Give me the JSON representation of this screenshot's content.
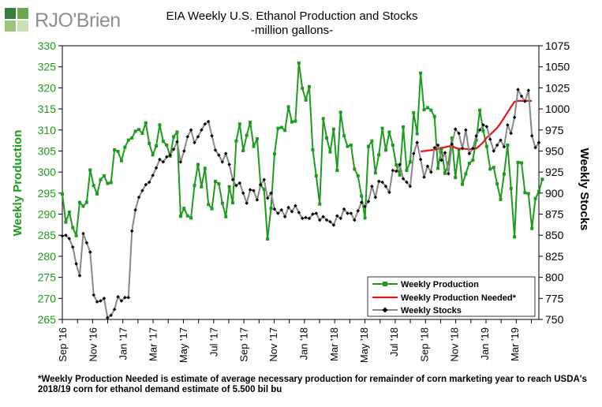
{
  "logo": {
    "brand_text": "RJO'Brien",
    "colors": [
      "#3a7d3a",
      "#6aa84f",
      "#9bc47a",
      "#c9dfb6"
    ]
  },
  "footnote": "*Weekly Production Needed is estimate of average necessary production for remainder of corn marketing year to reach USDA's 2018/19 corn for ethanol demand estimate of 5.500 bil bu",
  "colors": {
    "production": "#1e9b1e",
    "needed": "#e8131b",
    "stocks_line": "#888888",
    "stocks_marker": "#000000"
  },
  "chart_data": {
    "type": "line",
    "title": "EIA Weekly U.S. Ethanol Production and Stocks",
    "subtitle": "-million gallons-",
    "ylabel": "Weekly Production",
    "y2label": "Weekly Stocks",
    "ylim": [
      265,
      330
    ],
    "y2lim": [
      750,
      1075
    ],
    "yticks": [
      265,
      270,
      275,
      280,
      285,
      290,
      295,
      300,
      305,
      310,
      315,
      320,
      325,
      330
    ],
    "y2ticks": [
      750,
      775,
      800,
      825,
      850,
      875,
      900,
      925,
      950,
      975,
      1000,
      1025,
      1050,
      1075
    ],
    "x_range_weeks": [
      0,
      137
    ],
    "xtick_weeks": [
      0,
      8.7,
      17.4,
      26,
      34.7,
      43.4,
      52,
      60.6,
      69.3,
      78,
      86.6,
      95.3,
      104,
      112.6,
      121.3,
      130
    ],
    "xtick_labels": [
      "Sep '16",
      "Nov '16",
      "Jan '17",
      "Mar '17",
      "May '17",
      "Jul '17",
      "Sep '17",
      "Nov '17",
      "Jan '18",
      "Mar '18",
      "May '18",
      "Jul '18",
      "Sep '18",
      "Nov '18",
      "Jan '19",
      "Mar '19"
    ],
    "legend": {
      "position": "bottom-right",
      "entries": [
        "Weekly Production",
        "Weekly Production Needed*",
        "Weekly Stocks"
      ]
    },
    "grid": false,
    "series": [
      {
        "name": "Weekly Production",
        "axis": "left",
        "start_week": 0,
        "values": [
          294.8,
          288.1,
          290.5,
          286.8,
          284.9,
          292.8,
          291.9,
          292.8,
          300.5,
          296.8,
          294.8,
          298.2,
          299.1,
          297.3,
          297.5,
          305.3,
          304.9,
          302.7,
          305.9,
          307.6,
          308.1,
          309.7,
          310.1,
          309.2,
          311.7,
          306.8,
          304.1,
          306.2,
          311.2,
          307.3,
          306.4,
          303.8,
          308.4,
          309.5,
          289.5,
          291.4,
          289.6,
          289.1,
          296.8,
          301.8,
          296.5,
          300.9,
          292.3,
          291.3,
          297.8,
          297.2,
          292.6,
          289.4,
          296.5,
          292.7,
          307.4,
          311.4,
          305.1,
          308.7,
          311.8,
          306.1,
          307.9,
          296.9,
          295.9,
          284.1,
          291.4,
          304.3,
          310.4,
          310.6,
          309.9,
          315.5,
          311.9,
          312.1,
          325.9,
          319.9,
          317.1,
          320.3,
          305.3,
          299.1,
          292.4,
          312.7,
          308.1,
          304.8,
          310.2,
          300.4,
          314.2,
          308.6,
          306.1,
          306.4,
          300.7,
          299.1,
          294.3,
          289.1,
          306.1,
          307.4,
          299.8,
          304.1,
          310.4,
          305.2,
          309.5,
          306.4,
          301.7,
          299.3,
          310.7,
          300.4,
          302.4,
          314.1,
          309.1,
          323.5,
          314.8,
          315.3,
          314.7,
          313.2,
          300.9,
          305.6,
          299.7,
          302.1,
          308.1,
          298.7,
          305.4,
          297.1,
          299.6,
          302.1,
          302.8,
          307.6,
          314.7,
          309.8,
          306.1,
          300.7,
          301.1,
          297.2,
          293.5,
          299.5,
          306.4,
          296.1,
          284.6,
          302.3,
          302.2,
          295.1,
          294.9,
          286.6,
          293.7,
          295.4,
          298.3
        ]
      },
      {
        "name": "Weekly Production Needed*",
        "axis": "left",
        "start_week": 103,
        "values": [
          304.9,
          305,
          305.1,
          305.2,
          305.3,
          305.5,
          305.7,
          305.9,
          306.1,
          306.2,
          305.8,
          305.5,
          305.6,
          305.5,
          305.4,
          305.5,
          305.6,
          306.3,
          307.1,
          308.2,
          308.9,
          309.7,
          310.5,
          311.6,
          312.9,
          314.2,
          315.5,
          316.7,
          316.9,
          316.9,
          316.9,
          316.9,
          316.9
        ]
      },
      {
        "name": "Weekly Stocks",
        "axis": "right",
        "start_week": 0,
        "values": [
          849,
          850,
          846,
          836,
          816,
          802,
          852,
          841,
          830,
          779,
          771,
          772,
          775,
          752,
          755,
          762,
          777,
          772,
          776,
          776,
          855,
          880,
          895,
          903,
          910,
          913,
          921,
          930,
          940,
          937,
          943,
          945,
          952,
          961,
          937,
          950,
          967,
          975,
          960,
          967,
          975,
          982,
          985,
          968,
          951,
          945,
          937,
          947,
          934,
          916,
          909,
          912,
          900,
          888,
          904,
          903,
          892,
          910,
          916,
          894,
          900,
          881,
          876,
          880,
          872,
          883,
          878,
          885,
          877,
          870,
          871,
          870,
          875,
          876,
          868,
          872,
          868,
          866,
          862,
          873,
          870,
          881,
          876,
          876,
          868,
          879,
          889,
          884,
          890,
          908,
          895,
          914,
          913,
          908,
          901,
          927,
          926,
          934,
          917,
          913,
          908,
          947,
          960,
          940,
          919,
          932,
          925,
          954,
          957,
          939,
          948,
          923,
          958,
          976,
          971,
          953,
          975,
          947,
          953,
          968,
          975,
          981,
          979,
          964,
          950,
          957,
          963,
          955,
          981,
          971,
          990,
          1023,
          1015,
          1009,
          1022,
          968,
          954,
          960
        ]
      }
    ]
  }
}
